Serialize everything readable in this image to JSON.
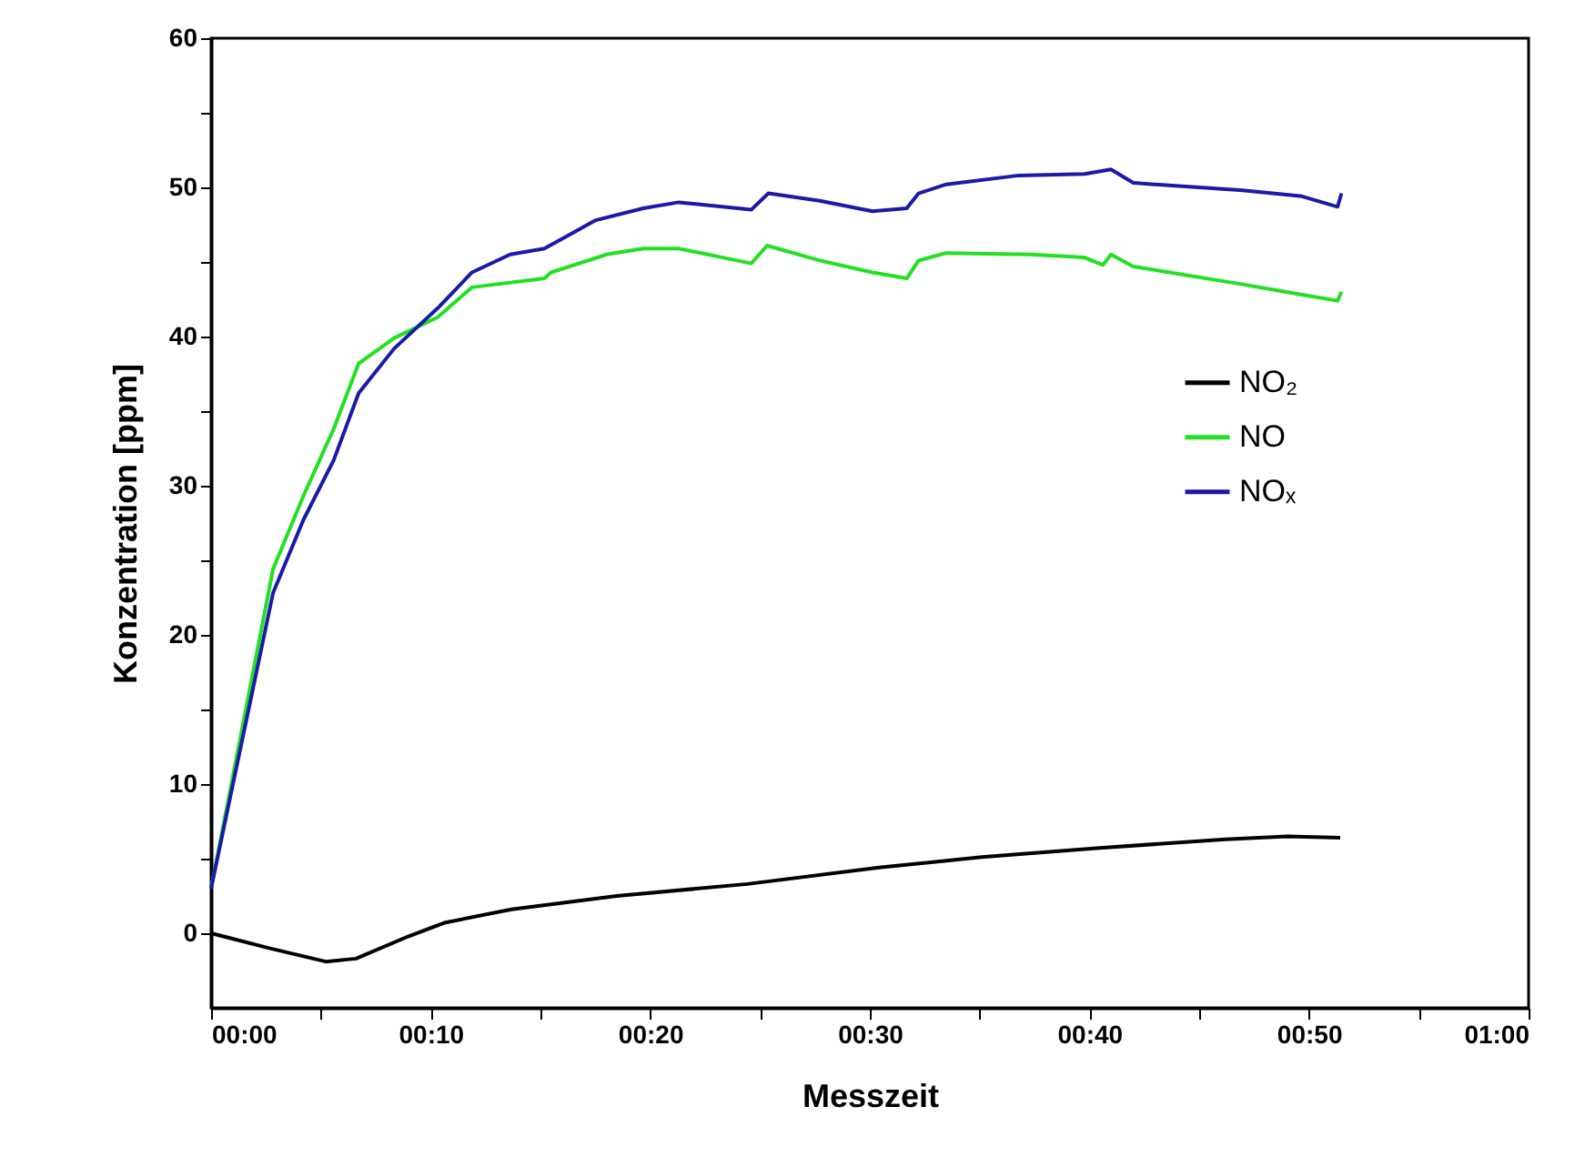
{
  "chart_data": {
    "type": "line",
    "xlabel": "Messzeit",
    "ylabel": "Konzentration [ppm]",
    "xlim": [
      0,
      1
    ],
    "ylim": [
      -5,
      60
    ],
    "xticks": [
      {
        "value": 0,
        "label": "00:00"
      },
      {
        "value": 0.08333,
        "label": null
      },
      {
        "value": 0.16667,
        "label": "00:10"
      },
      {
        "value": 0.25,
        "label": null
      },
      {
        "value": 0.33333,
        "label": "00:20"
      },
      {
        "value": 0.41667,
        "label": null
      },
      {
        "value": 0.5,
        "label": "00:30"
      },
      {
        "value": 0.58333,
        "label": null
      },
      {
        "value": 0.66667,
        "label": "00:40"
      },
      {
        "value": 0.75,
        "label": null
      },
      {
        "value": 0.83333,
        "label": "00:50"
      },
      {
        "value": 0.91667,
        "label": null
      },
      {
        "value": 1,
        "label": "01:00"
      }
    ],
    "yticks": [
      0,
      {
        "value": 5,
        "label": null
      },
      10,
      {
        "value": 15,
        "label": null
      },
      20,
      {
        "value": 25,
        "label": null
      },
      30,
      {
        "value": 35,
        "label": null
      },
      40,
      {
        "value": 45,
        "label": null
      },
      50,
      {
        "value": 55,
        "label": null
      },
      60
    ],
    "grid": false,
    "legend": "right",
    "line_style": "solid",
    "marker": "none",
    "series": [
      {
        "name": "NO₂",
        "color": "#000000",
        "x": [
          0,
          0.044,
          0.087,
          0.11,
          0.15,
          0.177,
          0.228,
          0.308,
          0.407,
          0.507,
          0.585,
          0.672,
          0.77,
          0.817,
          0.857
        ],
        "values": [
          0,
          -1.0,
          -1.9,
          -1.7,
          -0.2,
          0.7,
          1.6,
          2.5,
          3.3,
          4.4,
          5.1,
          5.7,
          6.3,
          6.5,
          6.4
        ]
      },
      {
        "name": "NO",
        "color": "#22e022",
        "x": [
          0,
          0.04,
          0.047,
          0.07,
          0.093,
          0.112,
          0.139,
          0.172,
          0.198,
          0.253,
          0.258,
          0.3,
          0.328,
          0.355,
          0.41,
          0.422,
          0.462,
          0.502,
          0.528,
          0.537,
          0.558,
          0.622,
          0.663,
          0.677,
          0.683,
          0.7,
          0.783,
          0.828,
          0.855,
          0.858
        ],
        "values": [
          3,
          21.2,
          24.4,
          29.3,
          33.8,
          38.2,
          39.9,
          41.3,
          43.3,
          43.9,
          44.3,
          45.5,
          45.9,
          45.9,
          44.9,
          46.1,
          45.1,
          44.3,
          43.9,
          45.1,
          45.6,
          45.5,
          45.3,
          44.8,
          45.5,
          44.7,
          43.5,
          42.8,
          42.4,
          43.0
        ]
      },
      {
        "name": "NOₓ",
        "color": "#1a1aa8",
        "x": [
          0,
          0.047,
          0.07,
          0.093,
          0.112,
          0.139,
          0.172,
          0.198,
          0.227,
          0.253,
          0.292,
          0.328,
          0.355,
          0.41,
          0.423,
          0.462,
          0.502,
          0.528,
          0.537,
          0.558,
          0.613,
          0.663,
          0.683,
          0.7,
          0.783,
          0.828,
          0.855,
          0.858
        ],
        "values": [
          3,
          22.8,
          27.7,
          31.7,
          36.2,
          39.2,
          41.9,
          44.3,
          45.5,
          45.9,
          47.8,
          48.6,
          49.0,
          48.5,
          49.6,
          49.1,
          48.4,
          48.6,
          49.6,
          50.2,
          50.8,
          50.9,
          51.2,
          50.3,
          49.8,
          49.4,
          48.7,
          49.6
        ]
      }
    ]
  }
}
